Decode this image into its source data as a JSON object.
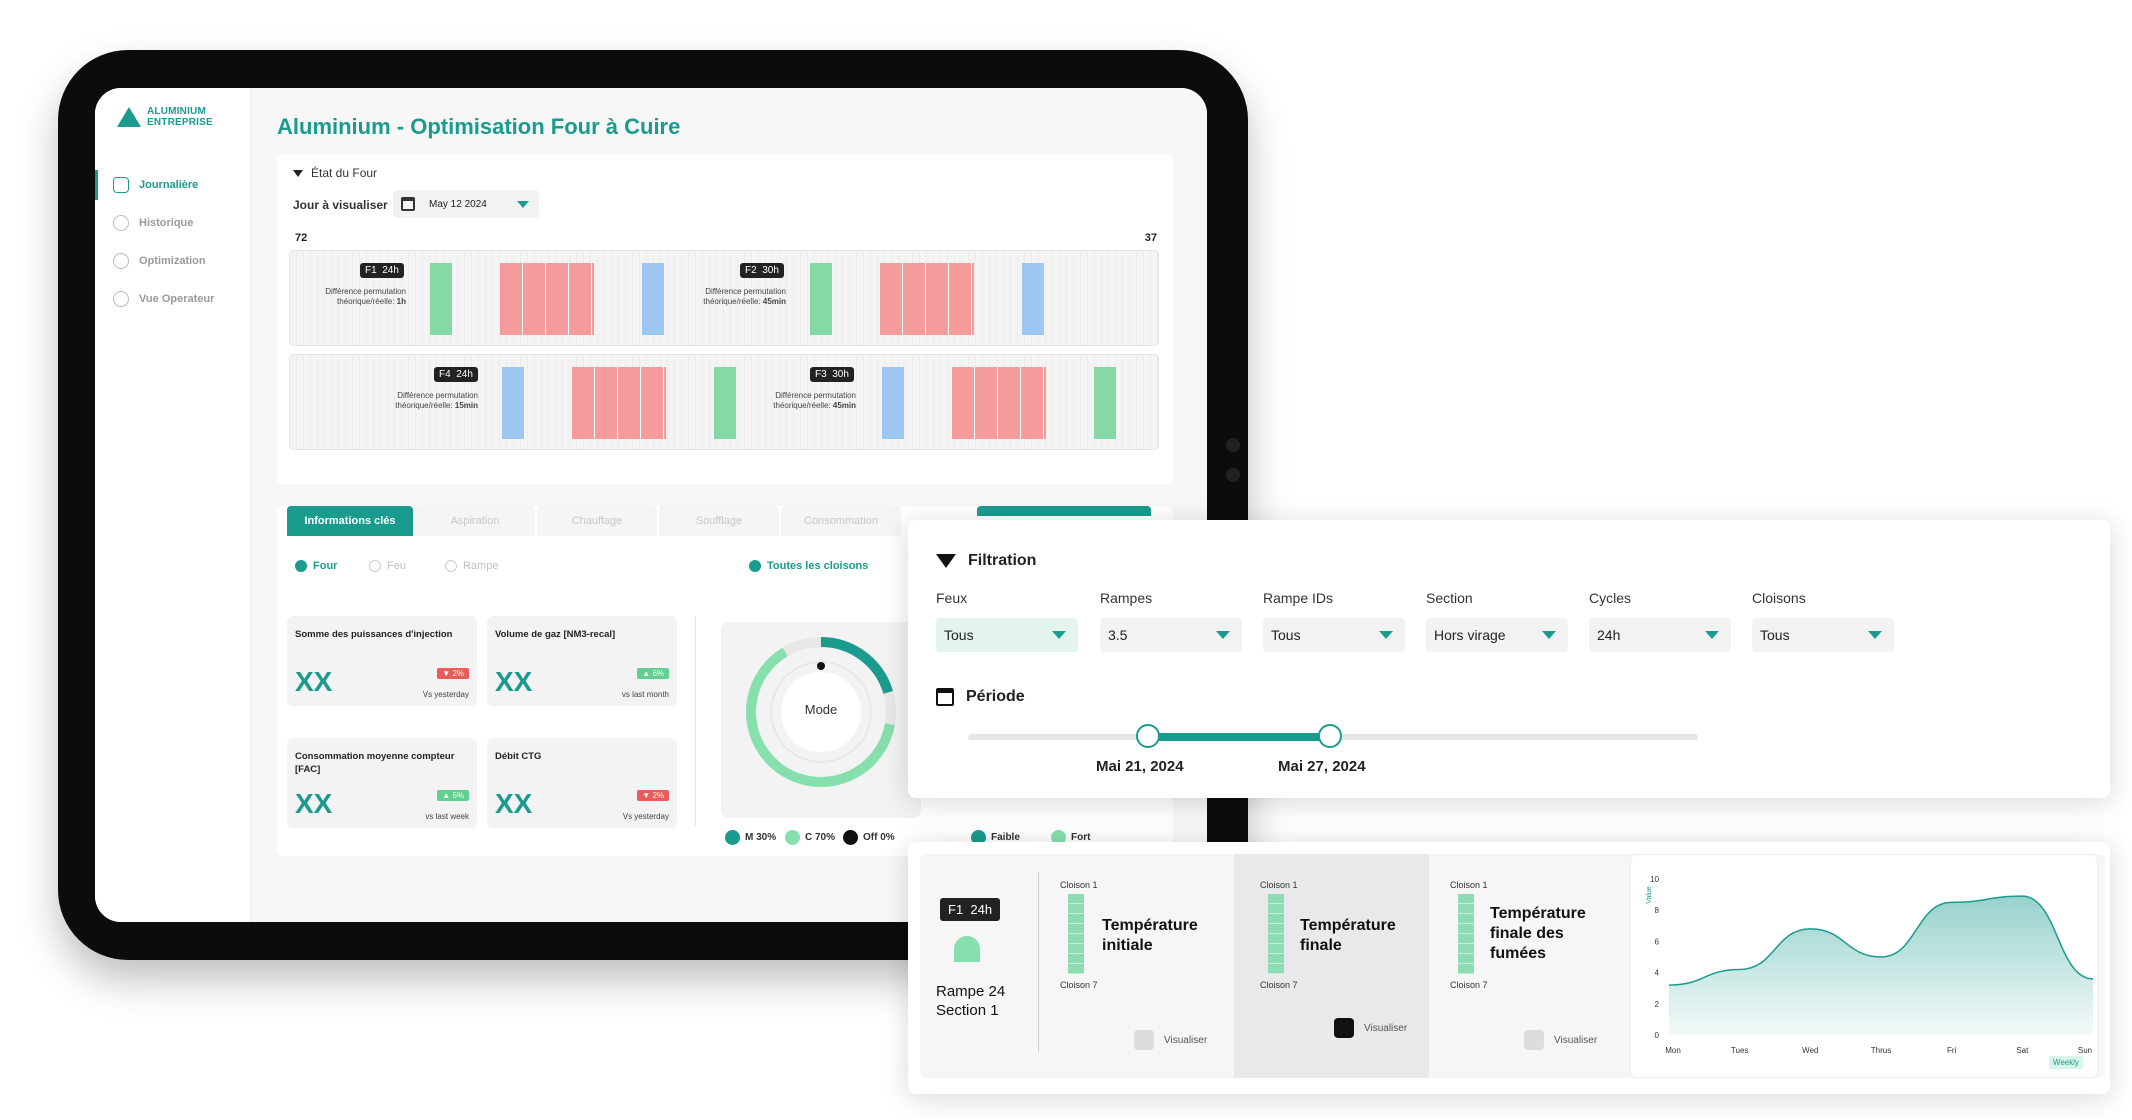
{
  "app": {
    "logo_line1": "ALUMINIUM",
    "logo_line2": "ENTREPRISE",
    "title": "Aluminium - Optimisation Four à Cuire"
  },
  "sidebar": {
    "items": [
      {
        "label": "Journalière",
        "active": true
      },
      {
        "label": "Historique"
      },
      {
        "label": "Optimization"
      },
      {
        "label": "Vue Operateur"
      }
    ]
  },
  "four": {
    "section_title": "État du Four",
    "day_label": "Jour à visualiser",
    "date": "May 12 2024",
    "left_number": "72",
    "right_number": "37",
    "strip1": {
      "badge1_f": "F1",
      "badge1_t": "24h",
      "diff1_a": "Différence permutation",
      "diff1_b": "théorique/réelle:",
      "diff1_v": "1h",
      "badge2_f": "F2",
      "badge2_t": "30h",
      "diff2_a": "Différence permutation",
      "diff2_b": "théorique/réelle:",
      "diff2_v": "45min"
    },
    "strip2": {
      "badge1_f": "F4",
      "badge1_t": "24h",
      "diff1_a": "Différence permutation",
      "diff1_b": "théorique/réelle:",
      "diff1_v": "15min",
      "badge2_f": "F3",
      "badge2_t": "30h",
      "diff2_a": "Différence permutation",
      "diff2_b": "théorique/réelle:",
      "diff2_v": "45min"
    }
  },
  "tabs": [
    "Informations clés",
    "Aspiration",
    "Chauffage",
    "Soufflage",
    "Consommation"
  ],
  "radios": [
    "Four",
    "Feu",
    "Rampe"
  ],
  "radio_right": "Toutes les cloisons",
  "kpis": [
    {
      "label": "Somme des puissances d'injection",
      "value": "XX",
      "change": "2%",
      "direction": "down",
      "sub": "Vs yesterday"
    },
    {
      "label": "Volume de gaz [NM3-recal]",
      "value": "XX",
      "change": "6%",
      "direction": "up",
      "sub": "vs last month"
    },
    {
      "label": "Consommation moyenne compteur [FAC]",
      "value": "XX",
      "change": "5%",
      "direction": "up",
      "sub": "vs last week"
    },
    {
      "label": "Débit CTG",
      "value": "XX",
      "change": "2%",
      "direction": "down",
      "sub": "Vs yesterday"
    }
  ],
  "mode": {
    "label": "Mode",
    "legend": [
      "M 30%",
      "C 70%",
      "Off 0%"
    ],
    "legend2": [
      "Faible",
      "Fort"
    ]
  },
  "filtration": {
    "title": "Filtration",
    "fields": [
      {
        "label": "Feux",
        "value": "Tous"
      },
      {
        "label": "Rampes",
        "value": "3.5"
      },
      {
        "label": "Rampe IDs",
        "value": "Tous"
      },
      {
        "label": "Section",
        "value": "Hors virage"
      },
      {
        "label": "Cycles",
        "value": "24h"
      },
      {
        "label": "Cloisons",
        "value": "Tous"
      }
    ],
    "period_title": "Période",
    "period_start": "Mai 21, 2024",
    "period_end": "Mai 27, 2024"
  },
  "detail": {
    "badge_f": "F1",
    "badge_t": "24h",
    "rampe": "Rampe 24",
    "section": "Section 1",
    "cols": [
      {
        "top": "Cloison 1",
        "title": "Température initiale",
        "bottom": "Cloison 7",
        "action": "Visualiser"
      },
      {
        "top": "Cloison 1",
        "title": "Température finale",
        "bottom": "Cloison 7",
        "action": "Visualiser"
      },
      {
        "top": "Cloison 1",
        "title": "Température finale des fumées",
        "bottom": "Cloison 7",
        "action": "Visualiser"
      }
    ]
  },
  "chart_data": {
    "type": "area",
    "categories": [
      "Mon",
      "Tues",
      "Wed",
      "Thrus",
      "Fri",
      "Sat",
      "Sun"
    ],
    "values": [
      3.2,
      4.2,
      6.8,
      5,
      8.5,
      8.9,
      3.6
    ],
    "ylabel": "Value",
    "yticks": [
      0,
      2,
      4,
      6,
      8,
      10
    ],
    "ylim": [
      0,
      10
    ],
    "badge": "Weekly",
    "color": "#1a9b8e"
  }
}
